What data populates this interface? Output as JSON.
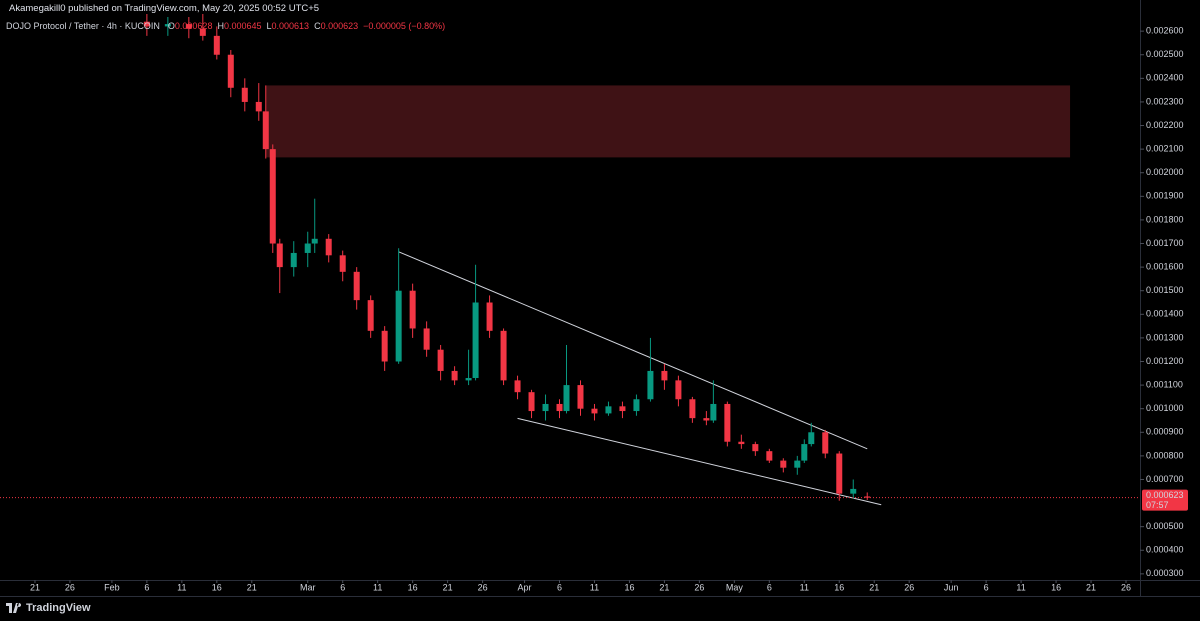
{
  "header": {
    "publisher": "Akamegakill0 published on TradingView.com, May 20, 2025 00:52 UTC+5"
  },
  "footer": {
    "brand": "TradingView"
  },
  "chart_data": {
    "type": "candlestick",
    "title": "DOJO Protocol / Tether · 4h · KUCOIN",
    "ohlc_labels": [
      "O",
      "H",
      "L",
      "C"
    ],
    "change": "−0.000005 (−0.80%)",
    "countdown": "07:57",
    "up_color": "#089981",
    "down_color": "#f23645",
    "last_price_color": "#f23645",
    "x": [
      "02-06",
      "02-09",
      "02-12",
      "02-14",
      "02-16",
      "02-18",
      "02-20",
      "02-22",
      "02-23",
      "02-24",
      "02-25",
      "02-27",
      "03-01",
      "03-02",
      "03-04",
      "03-06",
      "03-08",
      "03-10",
      "03-12",
      "03-14",
      "03-16",
      "03-18",
      "03-20",
      "03-22",
      "03-24",
      "03-25",
      "03-27",
      "03-29",
      "03-31",
      "04-02",
      "04-04",
      "04-06",
      "04-07",
      "04-09",
      "04-11",
      "04-13",
      "04-15",
      "04-17",
      "04-19",
      "04-21",
      "04-23",
      "04-25",
      "04-27",
      "04-28",
      "04-30",
      "05-02",
      "05-04",
      "05-06",
      "05-08",
      "05-10",
      "05-11",
      "05-12",
      "05-14",
      "05-16",
      "05-18",
      "05-20"
    ],
    "open": [
      0.00264,
      0.00262,
      0.00263,
      0.00261,
      0.00258,
      0.0025,
      0.00236,
      0.0023,
      0.00226,
      0.0021,
      0.0017,
      0.0016,
      0.00166,
      0.0017,
      0.00172,
      0.00165,
      0.00158,
      0.00146,
      0.00133,
      0.0012,
      0.0015,
      0.00134,
      0.00125,
      0.00116,
      0.00112,
      0.00113,
      0.00145,
      0.00133,
      0.00112,
      0.00107,
      0.00099,
      0.00102,
      0.00099,
      0.0011,
      0.001,
      0.00098,
      0.00101,
      0.00099,
      0.00104,
      0.00116,
      0.00112,
      0.00104,
      0.00096,
      0.00095,
      0.00102,
      0.00086,
      0.00085,
      0.00082,
      0.00078,
      0.00075,
      0.00078,
      0.00085,
      0.0009,
      0.00081,
      0.00064,
      0.000628
    ],
    "high": [
      0.00268,
      0.00266,
      0.00266,
      0.00268,
      0.00262,
      0.00252,
      0.0024,
      0.00238,
      0.00237,
      0.00212,
      0.00172,
      0.00171,
      0.00175,
      0.00189,
      0.00174,
      0.00167,
      0.0016,
      0.00148,
      0.00135,
      0.00168,
      0.00153,
      0.00137,
      0.00127,
      0.00118,
      0.00125,
      0.00161,
      0.00148,
      0.00134,
      0.00114,
      0.00108,
      0.00106,
      0.00104,
      0.00127,
      0.00112,
      0.00102,
      0.00103,
      0.00103,
      0.00106,
      0.0013,
      0.00119,
      0.00114,
      0.00105,
      0.00099,
      0.00112,
      0.00103,
      0.00089,
      0.00086,
      0.00083,
      0.00079,
      0.0008,
      0.00087,
      0.00094,
      0.00091,
      0.00082,
      0.0007,
      0.000645
    ],
    "low": [
      0.00258,
      0.00258,
      0.00257,
      0.00256,
      0.00248,
      0.00232,
      0.00226,
      0.00222,
      0.00206,
      0.00166,
      0.00149,
      0.00156,
      0.0016,
      0.00166,
      0.00162,
      0.00154,
      0.00142,
      0.0013,
      0.00116,
      0.00119,
      0.0013,
      0.00122,
      0.00112,
      0.0011,
      0.0011,
      0.00112,
      0.0013,
      0.0011,
      0.00104,
      0.00096,
      0.00095,
      0.00096,
      0.00098,
      0.00097,
      0.00095,
      0.00097,
      0.00096,
      0.00097,
      0.00103,
      0.00108,
      0.00101,
      0.00094,
      0.00093,
      0.00094,
      0.00084,
      0.00083,
      0.0008,
      0.00077,
      0.00073,
      0.00072,
      0.00077,
      0.00084,
      0.00079,
      0.00061,
      0.00062,
      0.000613
    ],
    "close": [
      0.00262,
      0.00263,
      0.00261,
      0.00258,
      0.0025,
      0.00236,
      0.0023,
      0.00226,
      0.0021,
      0.0017,
      0.0016,
      0.00166,
      0.0017,
      0.00172,
      0.00165,
      0.00158,
      0.00146,
      0.00133,
      0.0012,
      0.0015,
      0.00134,
      0.00125,
      0.00116,
      0.00112,
      0.00113,
      0.00145,
      0.00133,
      0.00112,
      0.00107,
      0.00099,
      0.00102,
      0.00099,
      0.0011,
      0.001,
      0.00098,
      0.00101,
      0.00099,
      0.00104,
      0.00116,
      0.00112,
      0.00104,
      0.00096,
      0.00095,
      0.00102,
      0.00086,
      0.00085,
      0.00082,
      0.00078,
      0.00075,
      0.00078,
      0.00085,
      0.0009,
      0.00081,
      0.00064,
      0.00066,
      0.000623
    ],
    "zone": {
      "x": [
        "02-23",
        "06-18"
      ],
      "y": [
        0.00237,
        0.002065
      ],
      "color": "#4a1519"
    },
    "trendlines": [
      {
        "x": [
          "03-14",
          "05-20"
        ],
        "y": [
          0.001665,
          0.00083
        ],
        "color": "#d1d4dc"
      },
      {
        "x": [
          "03-31",
          "05-22"
        ],
        "y": [
          0.000959,
          0.000593
        ],
        "color": "#d1d4dc"
      }
    ],
    "xlim": [
      "01-16",
      "06-28"
    ],
    "xticks": [
      {
        "value": "01-21",
        "label": "21"
      },
      {
        "value": "01-26",
        "label": "26"
      },
      {
        "value": "02-01",
        "label": "Feb"
      },
      {
        "value": "02-06",
        "label": "6"
      },
      {
        "value": "02-11",
        "label": "11"
      },
      {
        "value": "02-16",
        "label": "16"
      },
      {
        "value": "02-21",
        "label": "21"
      },
      {
        "value": "03-01",
        "label": "Mar"
      },
      {
        "value": "03-06",
        "label": "6"
      },
      {
        "value": "03-11",
        "label": "11"
      },
      {
        "value": "03-16",
        "label": "16"
      },
      {
        "value": "03-21",
        "label": "21"
      },
      {
        "value": "03-26",
        "label": "26"
      },
      {
        "value": "04-01",
        "label": "Apr"
      },
      {
        "value": "04-06",
        "label": "6"
      },
      {
        "value": "04-11",
        "label": "11"
      },
      {
        "value": "04-16",
        "label": "16"
      },
      {
        "value": "04-21",
        "label": "21"
      },
      {
        "value": "04-26",
        "label": "26"
      },
      {
        "value": "05-01",
        "label": "May"
      },
      {
        "value": "05-06",
        "label": "6"
      },
      {
        "value": "05-11",
        "label": "11"
      },
      {
        "value": "05-16",
        "label": "16"
      },
      {
        "value": "05-21",
        "label": "21"
      },
      {
        "value": "05-26",
        "label": "26"
      },
      {
        "value": "06-01",
        "label": "Jun"
      },
      {
        "value": "06-06",
        "label": "6"
      },
      {
        "value": "06-11",
        "label": "11"
      },
      {
        "value": "06-16",
        "label": "16"
      },
      {
        "value": "06-21",
        "label": "21"
      },
      {
        "value": "06-26",
        "label": "26"
      }
    ],
    "ylim": [
      0.000274,
      0.002732
    ],
    "yticks": [
      {
        "value": 0.0003,
        "label": "0.000300"
      },
      {
        "value": 0.0004,
        "label": "0.000400"
      },
      {
        "value": 0.0005,
        "label": "0.000500"
      },
      {
        "value": 0.0007,
        "label": "0.000700"
      },
      {
        "value": 0.0008,
        "label": "0.000800"
      },
      {
        "value": 0.0009,
        "label": "0.000900"
      },
      {
        "value": 0.001,
        "label": "0.001000"
      },
      {
        "value": 0.0011,
        "label": "0.001100"
      },
      {
        "value": 0.0012,
        "label": "0.001200"
      },
      {
        "value": 0.0013,
        "label": "0.001300"
      },
      {
        "value": 0.0014,
        "label": "0.001400"
      },
      {
        "value": 0.0015,
        "label": "0.001500"
      },
      {
        "value": 0.0016,
        "label": "0.001600"
      },
      {
        "value": 0.0017,
        "label": "0.001700"
      },
      {
        "value": 0.0018,
        "label": "0.001800"
      },
      {
        "value": 0.0019,
        "label": "0.001900"
      },
      {
        "value": 0.002,
        "label": "0.002000"
      },
      {
        "value": 0.0021,
        "label": "0.002100"
      },
      {
        "value": 0.0022,
        "label": "0.002200"
      },
      {
        "value": 0.0023,
        "label": "0.002300"
      },
      {
        "value": 0.0024,
        "label": "0.002400"
      },
      {
        "value": 0.0025,
        "label": "0.002500"
      },
      {
        "value": 0.0026,
        "label": "0.002600"
      }
    ]
  }
}
